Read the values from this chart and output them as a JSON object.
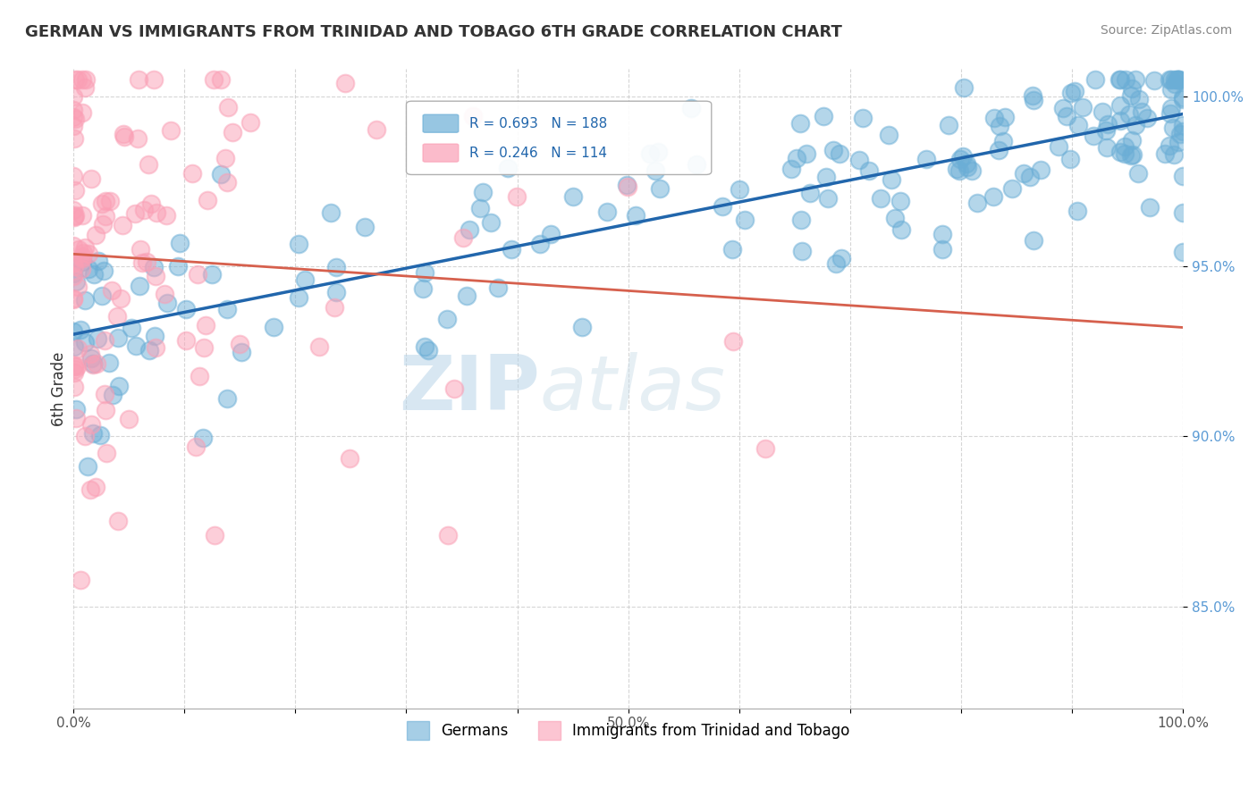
{
  "title": "GERMAN VS IMMIGRANTS FROM TRINIDAD AND TOBAGO 6TH GRADE CORRELATION CHART",
  "source": "Source: ZipAtlas.com",
  "ylabel": "6th Grade",
  "watermark_zip": "ZIP",
  "watermark_atlas": "atlas",
  "legend_blue_label": "Germans",
  "legend_pink_label": "Immigrants from Trinidad and Tobago",
  "R_blue": 0.693,
  "N_blue": 188,
  "R_pink": 0.246,
  "N_pink": 114,
  "blue_color": "#6baed6",
  "pink_color": "#fa9fb5",
  "blue_line_color": "#2166ac",
  "pink_line_color": "#d6604d",
  "xmin": 0.0,
  "xmax": 1.0,
  "ymin": 0.82,
  "ymax": 1.008,
  "yticks": [
    0.85,
    0.9,
    0.95,
    1.0
  ],
  "ytick_labels": [
    "85.0%",
    "90.0%",
    "95.0%",
    "100.0%"
  ],
  "xticks": [
    0.0,
    0.1,
    0.2,
    0.3,
    0.4,
    0.5,
    0.6,
    0.7,
    0.8,
    0.9,
    1.0
  ],
  "xtick_labels": [
    "0.0%",
    "",
    "",
    "",
    "",
    "50.0%",
    "",
    "",
    "",
    "",
    "100.0%"
  ],
  "background_color": "#ffffff",
  "grid_color": "#cccccc"
}
